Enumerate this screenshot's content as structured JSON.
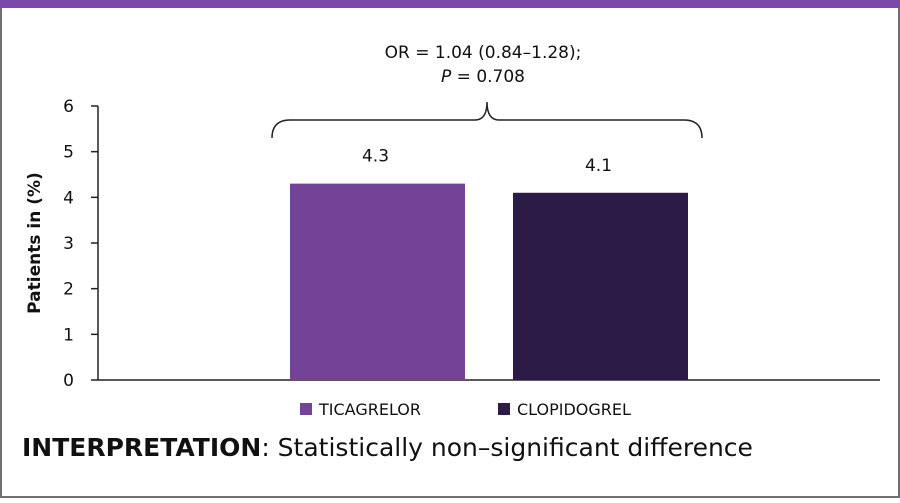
{
  "chart_data": {
    "type": "bar",
    "categories": [
      "TICAGRELOR",
      "CLOPIDOGREL"
    ],
    "values": [
      4.3,
      4.1
    ],
    "value_labels": [
      "4.3",
      "4.1"
    ],
    "colors": [
      "#724396",
      "#2d1b47"
    ],
    "title": "",
    "xlabel": "",
    "ylabel": "Patients in (%)",
    "ylim": [
      0,
      6
    ],
    "yticks": [
      0,
      1,
      2,
      3,
      4,
      5,
      6
    ],
    "legend": {
      "position": "bottom",
      "entries": [
        {
          "name": "TICAGRELOR",
          "color": "#724396"
        },
        {
          "name": "CLOPIDOGREL",
          "color": "#2d1b47"
        }
      ]
    },
    "annotation": {
      "line1": "OR = 1.04 (0.84–1.28);",
      "line2_italic": "P",
      "line2_rest": " = 0.708"
    },
    "grid": false
  },
  "interpretation": {
    "label": "INTERPRETATION",
    "text": ": Statistically non–significant difference"
  },
  "colors": {
    "accent": "#7b4aa8",
    "border": "#6f6f6f"
  }
}
